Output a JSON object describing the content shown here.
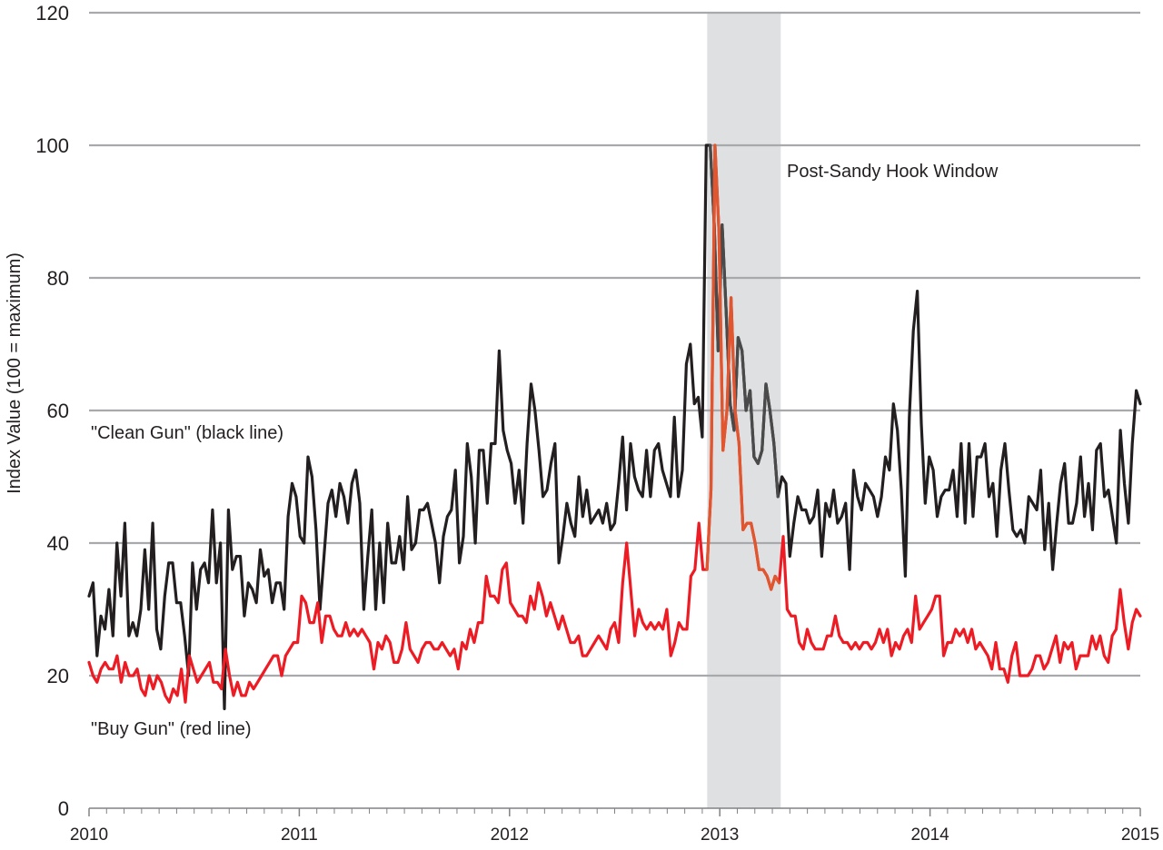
{
  "chart_data": {
    "type": "line",
    "title": "",
    "xlabel": "",
    "ylabel": "Index Value (100 = maximum)",
    "xlim": [
      2010,
      2015
    ],
    "ylim": [
      0,
      120
    ],
    "yticks": [
      "0",
      "20",
      "40",
      "60",
      "80",
      "100",
      "120"
    ],
    "xticks": [
      "2010",
      "2011",
      "2012",
      "2013",
      "2014",
      "2015"
    ],
    "grid": true,
    "shaded_window": {
      "label": "Post-Sandy Hook Window",
      "x_start": 2012.94,
      "x_end": 2013.29,
      "color": "#dfe0e2"
    },
    "series": [
      {
        "name": "\"Clean Gun\" (black line)",
        "color": "#231f20",
        "window_color": "#4a4a4a",
        "values": [
          32,
          34,
          23,
          29,
          27,
          33,
          26,
          40,
          32,
          43,
          26,
          28,
          26,
          30,
          39,
          30,
          43,
          27,
          24,
          32,
          37,
          37,
          31,
          31,
          26,
          20,
          37,
          30,
          36,
          37,
          34,
          45,
          34,
          40,
          15,
          45,
          36,
          38,
          38,
          29,
          34,
          33,
          31,
          39,
          35,
          36,
          31,
          34,
          34,
          30,
          44,
          49,
          47,
          41,
          40,
          53,
          50,
          42,
          30,
          38,
          46,
          48,
          44,
          49,
          47,
          43,
          49,
          51,
          46,
          30,
          38,
          45,
          30,
          40,
          31,
          43,
          37,
          37,
          41,
          36,
          47,
          39,
          40,
          45,
          45,
          46,
          43,
          40,
          34,
          41,
          44,
          45,
          51,
          37,
          41,
          55,
          50,
          40,
          54,
          54,
          46,
          55,
          55,
          69,
          57,
          54,
          52,
          46,
          51,
          43,
          55,
          64,
          60,
          54,
          47,
          48,
          52,
          55,
          37,
          41,
          46,
          43,
          41,
          50,
          44,
          48,
          43,
          44,
          45,
          43,
          46,
          42,
          43,
          49,
          56,
          45,
          55,
          50,
          48,
          47,
          54,
          47,
          54,
          55,
          51,
          49,
          47,
          59,
          47,
          51,
          67,
          70,
          61,
          62,
          56,
          100,
          100,
          88,
          69,
          88,
          75,
          61,
          57,
          71,
          69,
          60,
          63,
          53,
          52,
          54,
          64,
          60,
          55,
          47,
          50,
          49,
          38,
          43,
          47,
          45,
          45,
          43,
          44,
          48,
          38,
          46,
          44,
          48,
          43,
          44,
          46,
          36,
          51,
          47,
          45,
          49,
          48,
          47,
          44,
          47,
          53,
          51,
          61,
          57,
          48,
          35,
          59,
          72,
          78,
          58,
          46,
          53,
          51,
          44,
          47,
          48,
          48,
          51,
          44,
          55,
          43,
          55,
          44,
          53,
          53,
          55,
          47,
          49,
          41,
          51,
          55,
          48,
          42,
          41,
          42,
          40,
          47,
          46,
          45,
          51,
          39,
          46,
          36,
          43,
          49,
          52,
          43,
          43,
          46,
          53,
          44,
          49,
          42,
          54,
          55,
          47,
          48,
          44,
          40,
          57,
          49,
          43,
          55,
          63,
          61
        ]
      },
      {
        "name": "\"Buy Gun\" (red line)",
        "color": "#ed1c24",
        "window_color": "#e0562e",
        "values": [
          22,
          20,
          19,
          21,
          22,
          21,
          21,
          23,
          19,
          22,
          20,
          20,
          21,
          18,
          17,
          20,
          18,
          20,
          19,
          17,
          16,
          18,
          17,
          21,
          16,
          23,
          21,
          19,
          20,
          21,
          22,
          19,
          19,
          18,
          24,
          20,
          17,
          19,
          17,
          17,
          19,
          18,
          19,
          20,
          21,
          22,
          23,
          23,
          20,
          23,
          24,
          25,
          25,
          32,
          31,
          28,
          28,
          31,
          25,
          29,
          29,
          27,
          26,
          26,
          28,
          26,
          27,
          26,
          27,
          26,
          25,
          21,
          25,
          24,
          26,
          25,
          22,
          22,
          24,
          28,
          24,
          23,
          22,
          24,
          25,
          25,
          24,
          24,
          25,
          24,
          23,
          24,
          21,
          25,
          24,
          27,
          25,
          28,
          28,
          35,
          32,
          32,
          31,
          36,
          37,
          31,
          30,
          29,
          29,
          28,
          32,
          30,
          34,
          32,
          29,
          31,
          29,
          27,
          29,
          27,
          25,
          25,
          26,
          23,
          23,
          24,
          25,
          26,
          25,
          24,
          27,
          28,
          25,
          34,
          40,
          33,
          26,
          30,
          28,
          27,
          28,
          27,
          28,
          27,
          30,
          23,
          25,
          28,
          27,
          27,
          35,
          36,
          43,
          36,
          36,
          48,
          100,
          87,
          54,
          60,
          77,
          60,
          55,
          42,
          43,
          43,
          40,
          36,
          36,
          35,
          33,
          35,
          34,
          41,
          30,
          29,
          29,
          25,
          24,
          27,
          25,
          24,
          24,
          24,
          26,
          26,
          29,
          26,
          25,
          25,
          24,
          25,
          24,
          25,
          25,
          24,
          25,
          27,
          25,
          27,
          23,
          25,
          24,
          26,
          27,
          25,
          32,
          27,
          28,
          29,
          30,
          32,
          32,
          23,
          25,
          25,
          27,
          26,
          27,
          25,
          27,
          24,
          25,
          24,
          23,
          21,
          25,
          21,
          21,
          19,
          23,
          25,
          20,
          20,
          20,
          21,
          23,
          23,
          21,
          22,
          24,
          26,
          22,
          25,
          24,
          25,
          21,
          23,
          23,
          23,
          26,
          24,
          26,
          23,
          22,
          26,
          27,
          33,
          28,
          24,
          28,
          30,
          29
        ]
      }
    ]
  }
}
